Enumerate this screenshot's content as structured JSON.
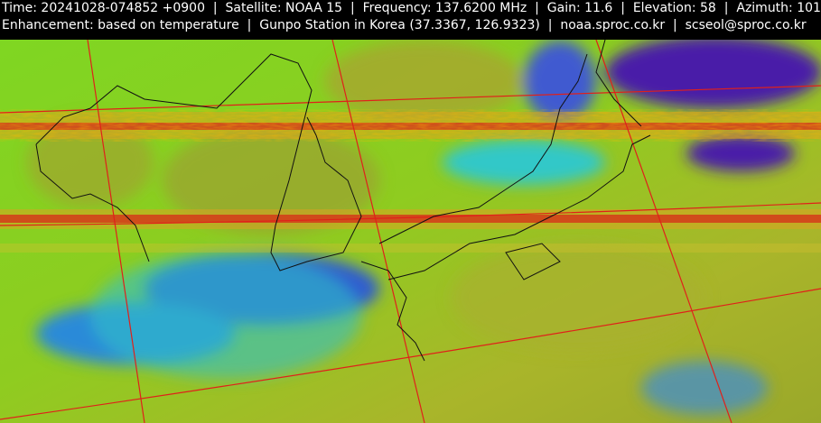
{
  "header": {
    "line1": "Time: 20241028-074852 +0900  |  Satellite: NOAA 15  |  Frequency: 137.6200 MHz  |  Gain: 11.6  |  Elevation: 58  |  Azimuth: 101",
    "line2": "Enhancement: based on temperature  |  Gunpo Station in Korea (37.3367, 126.9323)  |  noaa.sproc.co.kr  |  scseol@sproc.co.kr"
  }
}
